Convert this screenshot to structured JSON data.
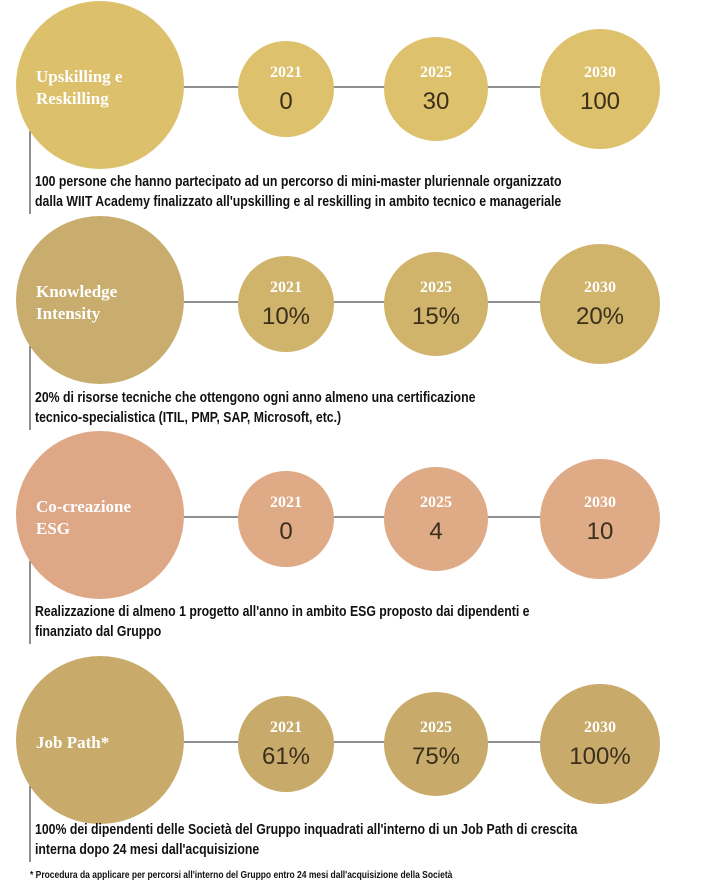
{
  "sections": [
    {
      "title": [
        "Upskilling e",
        "Reskilling"
      ],
      "milestones": [
        {
          "year": "2021",
          "value": "0"
        },
        {
          "year": "2025",
          "value": "30"
        },
        {
          "year": "2030",
          "value": "100"
        }
      ],
      "description": [
        "100 persone che hanno partecipato ad un percorso di mini-master pluriennale organizzato",
        "dalla WIIT Academy finalizzato all'upskilling e al reskilling in ambito tecnico e manageriale"
      ]
    },
    {
      "title": [
        "Knowledge",
        "Intensity"
      ],
      "milestones": [
        {
          "year": "2021",
          "value": "10%"
        },
        {
          "year": "2025",
          "value": "15%"
        },
        {
          "year": "2030",
          "value": "20%"
        }
      ],
      "description": [
        "20% di risorse tecniche che ottengono ogni anno almeno una certificazione",
        "tecnico-specialistica (ITIL, PMP, SAP, Microsoft, etc.)"
      ]
    },
    {
      "title": [
        "Co-creazione",
        "ESG"
      ],
      "milestones": [
        {
          "year": "2021",
          "value": "0"
        },
        {
          "year": "2025",
          "value": "4"
        },
        {
          "year": "2030",
          "value": "10"
        }
      ],
      "description": [
        "Realizzazione di almeno 1 progetto all'anno in ambito ESG proposto dai dipendenti e",
        "finanziato dal Gruppo"
      ]
    },
    {
      "title": [
        "Job Path*"
      ],
      "milestones": [
        {
          "year": "2021",
          "value": "61%"
        },
        {
          "year": "2025",
          "value": "75%"
        },
        {
          "year": "2030",
          "value": "100%"
        }
      ],
      "description": [
        "100% dei dipendenti delle Società del Gruppo inquadrati all'interno di un Job Path di crescita",
        "interna dopo 24 mesi dall'acquisizione"
      ]
    }
  ],
  "footnote": "* Procedura da applicare per percorsi all'interno del Gruppo entro 24 mesi dall'acquisizione della Società"
}
